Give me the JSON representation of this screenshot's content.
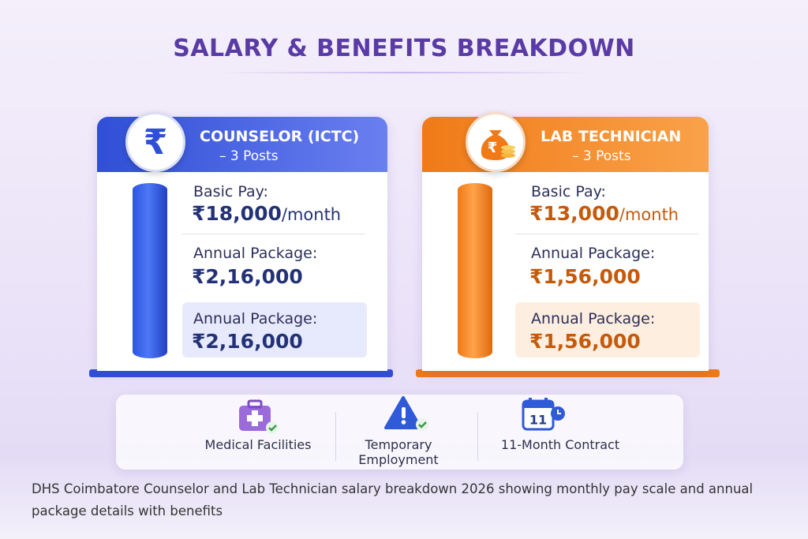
{
  "header": {
    "title": "SALARY & BENEFITS BREAKDOWN"
  },
  "cards": [
    {
      "icon_symbol": "₹",
      "title": "COUNSELOR (ICTC)",
      "subtitle": "– 3 Posts",
      "basic_label": "Basic Pay:",
      "basic_value": "₹18,000",
      "basic_unit": "/month",
      "annual_label": "Annual Package:",
      "annual_value": "₹2,16,000",
      "highlight_label": "Annual Package:",
      "highlight_value": "₹2,16,000"
    },
    {
      "icon_symbol": "₹",
      "title": "LAB TECHNICIAN",
      "subtitle": "– 3 Posts",
      "basic_label": "Basic Pay:",
      "basic_value": "₹13,000",
      "basic_unit": "/month",
      "annual_label": "Annual Package:",
      "annual_value": "₹1,56,000",
      "highlight_label": "Annual Package:",
      "highlight_value": "₹1,56,000"
    }
  ],
  "benefits": [
    {
      "label": "Medical Facilities"
    },
    {
      "label": "Temporary Employment"
    },
    {
      "icon_text": "11",
      "label": "11-Month Contract"
    }
  ],
  "caption": "DHS Coimbatore Counselor and Lab Technician salary breakdown 2026 showing monthly pay scale and annual package details with benefits"
}
